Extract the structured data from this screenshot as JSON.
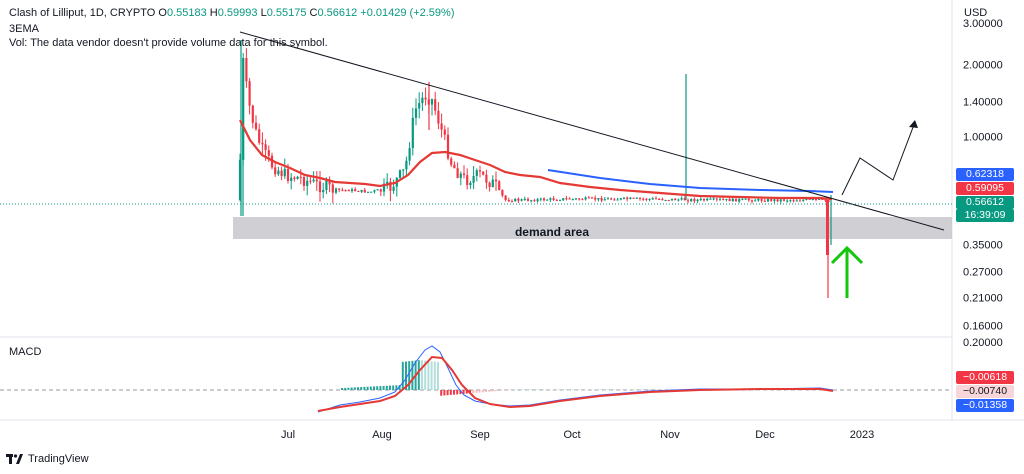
{
  "header": {
    "symbol_line": "Clash of Lilliput, 1D, CRYPTO",
    "ohlc": [
      {
        "k": "O",
        "v": "0.55183"
      },
      {
        "k": "H",
        "v": "0.59993"
      },
      {
        "k": "L",
        "v": "0.55175"
      },
      {
        "k": "C",
        "v": "0.56612"
      }
    ],
    "change": "+0.01429 (+2.59%)",
    "indicator": "3EMA",
    "volume_note": "Vol: The data vendor doesn't provide volume data for this symbol."
  },
  "currency": "USD",
  "macd_label": "MACD",
  "annotation": "demand area",
  "price_tags": [
    {
      "value": "0.62318",
      "color": "#2962ff"
    },
    {
      "value": "0.59095",
      "color": "#f23645"
    },
    {
      "value": "0.56612",
      "color": "#089981"
    },
    {
      "value": "16:39:09",
      "color": "#089981"
    }
  ],
  "macd_tags": [
    {
      "value": "−0.00618",
      "color": "#f23645",
      "text": "#ffffff"
    },
    {
      "value": "−0.00740",
      "color": "#f7d5d8",
      "text": "#131722"
    },
    {
      "value": "−0.01358",
      "color": "#2962ff",
      "text": "#ffffff"
    }
  ],
  "brand": "TradingView",
  "chart_data": {
    "type": "line",
    "title": "Clash of Lilliput, 1D, CRYPTO",
    "y_scale": "log",
    "y_ticks": [
      "3.00000",
      "2.00000",
      "1.40000",
      "1.00000",
      "0.35000",
      "0.27000",
      "0.21000",
      "0.16000"
    ],
    "y_tick_values": [
      3.0,
      2.0,
      1.4,
      1.0,
      0.35,
      0.27,
      0.21,
      0.16
    ],
    "ylim": [
      0.15,
      3.4
    ],
    "x_ticks": [
      "Jul",
      "Aug",
      "Sep",
      "Oct",
      "Nov",
      "Dec",
      "2023"
    ],
    "macd_ticks": [
      "0.20000"
    ],
    "series": [
      {
        "name": "price",
        "x": [
          "Jun 14",
          "Jun 16",
          "Jun 20",
          "Jun 25",
          "Jul 1",
          "Jul 8",
          "Jul 15",
          "Jul 22",
          "Jul 29",
          "Aug 3",
          "Aug 8",
          "Aug 12",
          "Aug 15",
          "Aug 18",
          "Aug 22",
          "Aug 28",
          "Sep 3",
          "Sep 10",
          "Sep 20",
          "Oct 1",
          "Oct 15",
          "Nov 1",
          "Nov 10",
          "Nov 20",
          "Dec 1",
          "Dec 10",
          "Dec 18",
          "Dec 21",
          "Dec 23",
          "Dec 24"
        ],
        "values": [
          0.62,
          2.9,
          1.3,
          1.05,
          0.85,
          0.78,
          0.72,
          0.7,
          0.6,
          0.62,
          1.05,
          1.7,
          1.55,
          1.35,
          0.85,
          0.82,
          0.58,
          0.57,
          0.57,
          0.565,
          0.56,
          0.57,
          0.56,
          0.56,
          0.555,
          0.56,
          0.56,
          0.36,
          0.55,
          0.566
        ]
      },
      {
        "name": "ema",
        "x": [
          "Jun 20",
          "Jul 1",
          "Jul 15",
          "Aug 1",
          "Aug 10",
          "Aug 20",
          "Sep 1",
          "Sep 15",
          "Oct 1",
          "Nov 1",
          "Dec 1",
          "Dec 24"
        ],
        "values": [
          1.1,
          0.8,
          0.72,
          0.68,
          0.8,
          0.95,
          0.86,
          0.7,
          0.63,
          0.6,
          0.59,
          0.59
        ]
      }
    ],
    "annotations": [
      {
        "text": "demand area",
        "range": [
          0.43,
          0.5
        ]
      }
    ],
    "macd": {
      "macd_values": [
        -0.04,
        -0.03,
        -0.02,
        0.0,
        0.1,
        0.2,
        0.12,
        -0.02,
        -0.05,
        -0.04,
        -0.02,
        -0.01,
        -0.01,
        -0.013
      ],
      "signal_values": [
        -0.04,
        -0.035,
        -0.025,
        -0.01,
        0.05,
        0.17,
        0.15,
        0.03,
        -0.04,
        -0.04,
        -0.025,
        -0.012,
        -0.009,
        -0.006
      ]
    }
  }
}
